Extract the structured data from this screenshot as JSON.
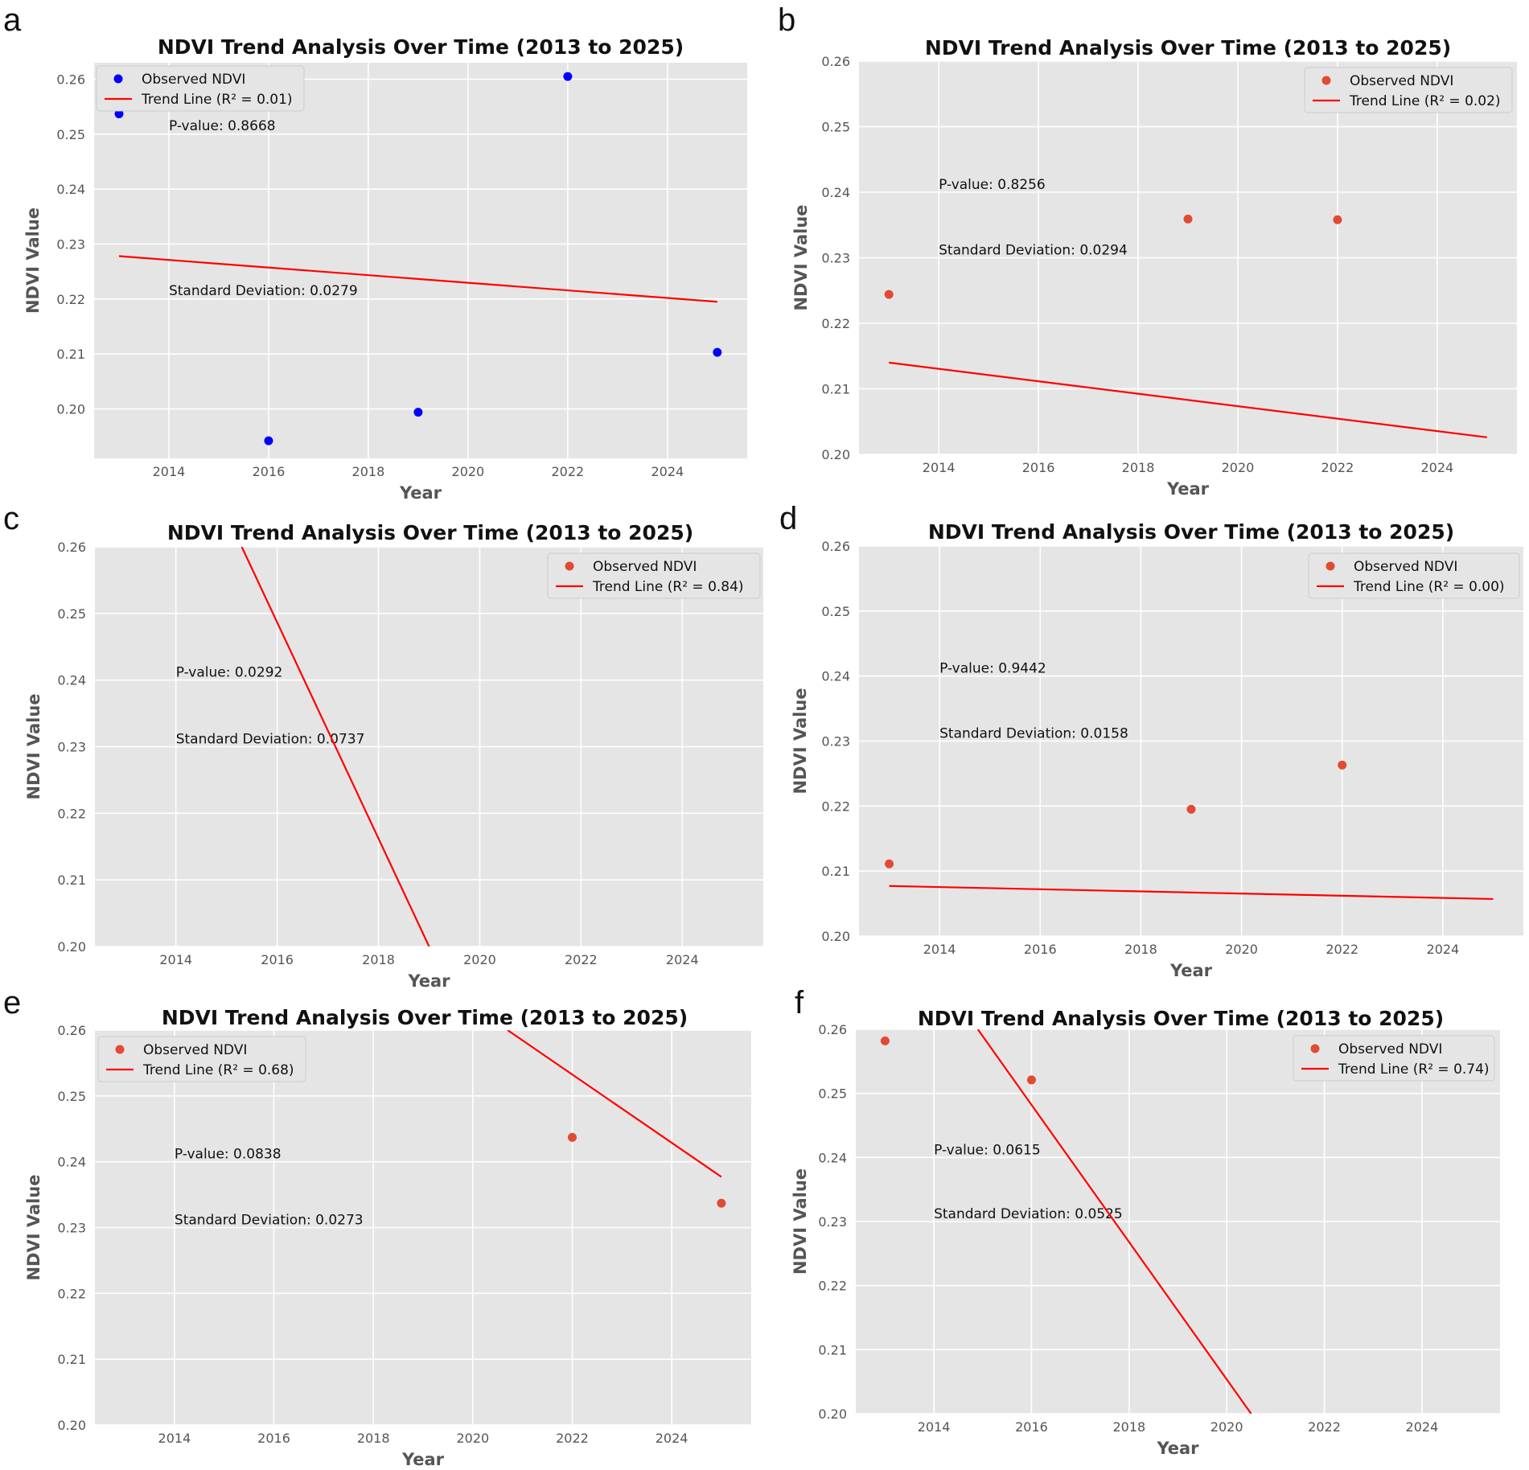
{
  "chart_data": [
    {
      "panel": "a",
      "type": "scatter",
      "title": "NDVI Trend Analysis Over Time (2013 to 2025)",
      "xlabel": "Year",
      "ylabel": "NDVI Value",
      "xlim": [
        2012.5,
        2025.6
      ],
      "ylim": [
        0.191,
        0.263
      ],
      "xticks": [
        2014,
        2016,
        2018,
        2020,
        2022,
        2024
      ],
      "yticks": [
        0.2,
        0.21,
        0.22,
        0.23,
        0.24,
        0.25,
        0.26
      ],
      "point_color": "#0000ff",
      "trend_color": "#ff0000",
      "series": [
        {
          "name": "Observed NDVI",
          "x": [
            2013,
            2016,
            2019,
            2022,
            2025
          ],
          "y": [
            0.2537,
            0.1942,
            0.1994,
            0.2605,
            0.2103
          ]
        },
        {
          "name": "Trend Line (R² = 0.01)",
          "kind": "line",
          "x": [
            2013,
            2025
          ],
          "y": [
            0.2278,
            0.2195
          ]
        }
      ],
      "annotations": [
        {
          "text": "P-value: 0.8668",
          "x": 2014.0,
          "y": 0.2507
        },
        {
          "text": "Standard Deviation: 0.0279",
          "x": 2014.0,
          "y": 0.2207
        }
      ],
      "legend": "top-left",
      "grid": true
    },
    {
      "panel": "b",
      "type": "scatter",
      "title": "NDVI Trend Analysis Over Time (2013 to 2025)",
      "xlabel": "Year",
      "ylabel": "NDVI Value",
      "xlim": [
        2012.4,
        2025.6
      ],
      "ylim": [
        0.2,
        0.26
      ],
      "xticks": [
        2014,
        2016,
        2018,
        2020,
        2022,
        2024
      ],
      "yticks": [
        0.2,
        0.21,
        0.22,
        0.23,
        0.24,
        0.25,
        0.26
      ],
      "point_color": "#e24a33",
      "trend_color": "#ff0000",
      "series": [
        {
          "name": "Observed NDVI",
          "x": [
            2013,
            2019,
            2022
          ],
          "y": [
            0.2244,
            0.2359,
            0.2358
          ]
        },
        {
          "name": "Trend Line (R² = 0.02)",
          "kind": "line",
          "x": [
            2013,
            2025
          ],
          "y": [
            0.214,
            0.2026
          ]
        }
      ],
      "annotations": [
        {
          "text": "P-value: 0.8256",
          "x": 2014.0,
          "y": 0.2405
        },
        {
          "text": "Standard Deviation: 0.0294",
          "x": 2014.0,
          "y": 0.2305
        }
      ],
      "legend": "top-right",
      "grid": true
    },
    {
      "panel": "c",
      "type": "scatter",
      "title": "NDVI Trend Analysis Over Time (2013 to 2025)",
      "xlabel": "Year",
      "ylabel": "NDVI Value",
      "xlim": [
        2012.4,
        2025.6
      ],
      "ylim": [
        0.2,
        0.26
      ],
      "xticks": [
        2014,
        2016,
        2018,
        2020,
        2022,
        2024
      ],
      "yticks": [
        0.2,
        0.21,
        0.22,
        0.23,
        0.24,
        0.25,
        0.26
      ],
      "point_color": "#e24a33",
      "trend_color": "#ff0000",
      "series": [
        {
          "name": "Observed NDVI",
          "x": [],
          "y": []
        },
        {
          "name": "Trend Line (R² = 0.84)",
          "kind": "line",
          "x": [
            2015.3,
            2019.0
          ],
          "y": [
            0.26,
            0.2
          ]
        }
      ],
      "annotations": [
        {
          "text": "P-value: 0.0292",
          "x": 2014.0,
          "y": 0.2405
        },
        {
          "text": "Standard Deviation: 0.0737",
          "x": 2014.0,
          "y": 0.2305
        }
      ],
      "legend": "top-right",
      "grid": true
    },
    {
      "panel": "d",
      "type": "scatter",
      "title": "NDVI Trend Analysis Over Time (2013 to 2025)",
      "xlabel": "Year",
      "ylabel": "NDVI Value",
      "xlim": [
        2012.4,
        2025.6
      ],
      "ylim": [
        0.2,
        0.26
      ],
      "xticks": [
        2014,
        2016,
        2018,
        2020,
        2022,
        2024
      ],
      "yticks": [
        0.2,
        0.21,
        0.22,
        0.23,
        0.24,
        0.25,
        0.26
      ],
      "point_color": "#e24a33",
      "trend_color": "#ff0000",
      "series": [
        {
          "name": "Observed NDVI",
          "x": [
            2013,
            2019,
            2022
          ],
          "y": [
            0.2111,
            0.2195,
            0.2263
          ]
        },
        {
          "name": "Trend Line (R² = 0.00)",
          "kind": "line",
          "x": [
            2013,
            2025
          ],
          "y": [
            0.2077,
            0.2057
          ]
        }
      ],
      "annotations": [
        {
          "text": "P-value: 0.9442",
          "x": 2014.0,
          "y": 0.2405
        },
        {
          "text": "Standard Deviation: 0.0158",
          "x": 2014.0,
          "y": 0.2305
        }
      ],
      "legend": "top-right",
      "grid": true
    },
    {
      "panel": "e",
      "type": "scatter",
      "title": "NDVI Trend Analysis Over Time (2013 to 2025)",
      "xlabel": "Year",
      "ylabel": "NDVI Value",
      "xlim": [
        2012.4,
        2025.6
      ],
      "ylim": [
        0.2,
        0.26
      ],
      "xticks": [
        2014,
        2016,
        2018,
        2020,
        2022,
        2024
      ],
      "yticks": [
        0.2,
        0.21,
        0.22,
        0.23,
        0.24,
        0.25,
        0.26
      ],
      "point_color": "#e24a33",
      "trend_color": "#ff0000",
      "series": [
        {
          "name": "Observed NDVI",
          "x": [
            2022,
            2025
          ],
          "y": [
            0.2437,
            0.2337
          ]
        },
        {
          "name": "Trend Line (R² = 0.68)",
          "kind": "line",
          "x": [
            2020.7,
            2025
          ],
          "y": [
            0.26,
            0.2377
          ]
        }
      ],
      "annotations": [
        {
          "text": "P-value: 0.0838",
          "x": 2014.0,
          "y": 0.2405
        },
        {
          "text": "Standard Deviation: 0.0273",
          "x": 2014.0,
          "y": 0.2305
        }
      ],
      "legend": "top-left",
      "grid": true
    },
    {
      "panel": "f",
      "type": "scatter",
      "title": "NDVI Trend Analysis Over Time (2013 to 2025)",
      "xlabel": "Year",
      "ylabel": "NDVI Value",
      "xlim": [
        2012.4,
        2025.6
      ],
      "ylim": [
        0.2,
        0.26
      ],
      "xticks": [
        2014,
        2016,
        2018,
        2020,
        2022,
        2024
      ],
      "yticks": [
        0.2,
        0.21,
        0.22,
        0.23,
        0.24,
        0.25,
        0.26
      ],
      "point_color": "#e24a33",
      "trend_color": "#ff0000",
      "series": [
        {
          "name": "Observed NDVI",
          "x": [
            2013,
            2016
          ],
          "y": [
            0.2582,
            0.2521
          ]
        },
        {
          "name": "Trend Line (R² = 0.74)",
          "kind": "line",
          "x": [
            2014.9,
            2020.5
          ],
          "y": [
            0.26,
            0.2
          ]
        }
      ],
      "annotations": [
        {
          "text": "P-value: 0.0615",
          "x": 2014.0,
          "y": 0.2405
        },
        {
          "text": "Standard Deviation: 0.0525",
          "x": 2014.0,
          "y": 0.2305
        }
      ],
      "legend": "top-right",
      "grid": true
    }
  ]
}
